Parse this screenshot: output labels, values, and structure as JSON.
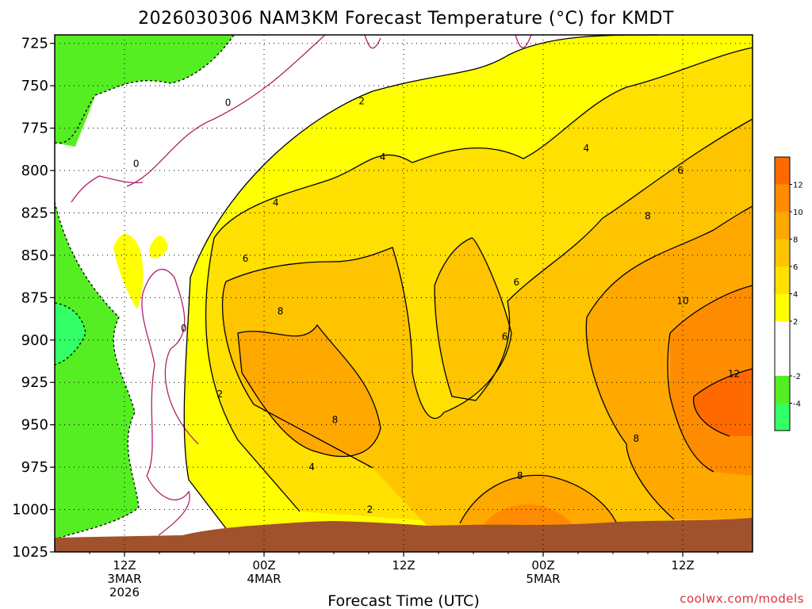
{
  "chart_data": {
    "type": "heatmap",
    "title": "2026030306 NAM3KM Forecast Temperature (°C) for KMDT",
    "xlabel": "Forecast Time (UTC)",
    "ylabel": "",
    "credit": "coolwx.com/models",
    "x_ticks": [
      {
        "hour": 6,
        "lines": [
          "12Z",
          "3MAR",
          "2026"
        ]
      },
      {
        "hour": 18,
        "lines": [
          "00Z",
          "4MAR"
        ]
      },
      {
        "hour": 30,
        "lines": [
          "12Z"
        ]
      },
      {
        "hour": 42,
        "lines": [
          "00Z",
          "5MAR"
        ]
      },
      {
        "hour": 54,
        "lines": [
          "12Z"
        ]
      }
    ],
    "x_range_hours": [
      0,
      60
    ],
    "y_axis": {
      "scale": "pressure (hPa), inverted",
      "range": [
        1025,
        720
      ],
      "ticks": [
        725,
        750,
        775,
        800,
        825,
        850,
        875,
        900,
        925,
        950,
        975,
        1000,
        1025
      ]
    },
    "contour_interval": 2,
    "colorbar": {
      "ticks": [
        -4,
        -2,
        2,
        4,
        6,
        8,
        10,
        12
      ],
      "bands": [
        {
          "range": [
            -6,
            -4
          ],
          "color": "#33ff66"
        },
        {
          "range": [
            -4,
            -2
          ],
          "color": "#55ee22"
        },
        {
          "range": [
            -2,
            2
          ],
          "color": "#ffffff"
        },
        {
          "range": [
            2,
            4
          ],
          "color": "#ffff00"
        },
        {
          "range": [
            4,
            6
          ],
          "color": "#ffe000"
        },
        {
          "range": [
            6,
            8
          ],
          "color": "#ffc400"
        },
        {
          "range": [
            8,
            10
          ],
          "color": "#ffa800"
        },
        {
          "range": [
            10,
            12
          ],
          "color": "#ff8c00"
        },
        {
          "range": [
            12,
            14
          ],
          "color": "#ff6a00"
        }
      ]
    },
    "contour_labels": [
      {
        "value": "0",
        "hour": 14.9,
        "p": 760
      },
      {
        "value": "0",
        "hour": 7.0,
        "p": 796
      },
      {
        "value": "0",
        "hour": 11.1,
        "p": 893
      },
      {
        "value": "2",
        "hour": 26.4,
        "p": 759
      },
      {
        "value": "2",
        "hour": 14.2,
        "p": 932
      },
      {
        "value": "2",
        "hour": 27.1,
        "p": 1000
      },
      {
        "value": "4",
        "hour": 28.2,
        "p": 792
      },
      {
        "value": "4",
        "hour": 19.0,
        "p": 819
      },
      {
        "value": "4",
        "hour": 45.7,
        "p": 787
      },
      {
        "value": "4",
        "hour": 22.1,
        "p": 975
      },
      {
        "value": "6",
        "hour": 16.4,
        "p": 852
      },
      {
        "value": "6",
        "hour": 39.7,
        "p": 866
      },
      {
        "value": "6",
        "hour": 38.7,
        "p": 898
      },
      {
        "value": "6",
        "hour": 53.8,
        "p": 800
      },
      {
        "value": "8",
        "hour": 19.4,
        "p": 883
      },
      {
        "value": "8",
        "hour": 24.1,
        "p": 947
      },
      {
        "value": "8",
        "hour": 40.0,
        "p": 980
      },
      {
        "value": "8",
        "hour": 51.0,
        "p": 827
      },
      {
        "value": "8",
        "hour": 50.0,
        "p": 958
      },
      {
        "value": "10",
        "hour": 54.0,
        "p": 877
      },
      {
        "value": "12",
        "hour": 58.4,
        "p": 920
      }
    ],
    "legend": "colorbar right"
  }
}
